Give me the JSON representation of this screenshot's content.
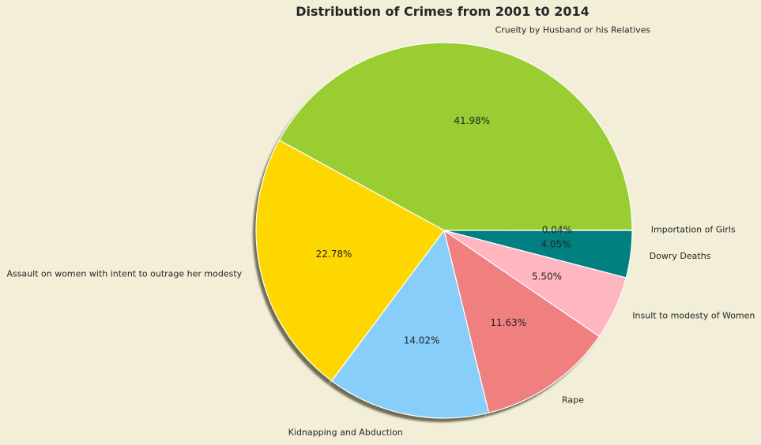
{
  "chart_data": {
    "type": "pie",
    "title": "Distribution of Crimes from 2001 t0 2014",
    "shadow": true,
    "start_angle_deg": 0,
    "direction": "counterclockwise",
    "background": "#f2eed8",
    "slices": [
      {
        "label": "Importation of Girls",
        "value": 0.04,
        "pct_label": "0.04%",
        "color": "#66cc00"
      },
      {
        "label": "Cruelty by Husband or his Relatives",
        "value": 41.98,
        "pct_label": "41.98%",
        "color": "#9acd32"
      },
      {
        "label": "Assault on women with intent to outrage her modesty",
        "value": 22.78,
        "pct_label": "22.78%",
        "color": "#ffd700"
      },
      {
        "label": "Kidnapping and Abduction",
        "value": 14.02,
        "pct_label": "14.02%",
        "color": "#87cefa"
      },
      {
        "label": "Rape",
        "value": 11.63,
        "pct_label": "11.63%",
        "color": "#f08080"
      },
      {
        "label": "Insult to modesty of Women",
        "value": 5.5,
        "pct_label": "5.50%",
        "color": "#ffb6c1"
      },
      {
        "label": "Dowry Deaths",
        "value": 4.05,
        "pct_label": "4.05%",
        "color": "#008080"
      }
    ]
  }
}
